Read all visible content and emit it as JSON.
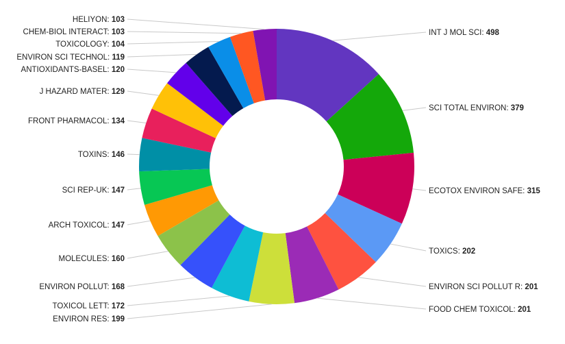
{
  "chart_data": {
    "type": "pie",
    "variant": "donut",
    "title": "",
    "legend": "none",
    "slices": [
      {
        "label": "INT J MOL SCI",
        "value": 498,
        "color": "#6236c0"
      },
      {
        "label": "SCI TOTAL ENVIRON",
        "value": 379,
        "color": "#14a80a"
      },
      {
        "label": "ECOTOX ENVIRON SAFE",
        "value": 315,
        "color": "#cc0058"
      },
      {
        "label": "TOXICS",
        "value": 202,
        "color": "#5b99f5"
      },
      {
        "label": "ENVIRON SCI POLLUT R",
        "value": 201,
        "color": "#fe5240"
      },
      {
        "label": "FOOD CHEM TOXICOL",
        "value": 201,
        "color": "#9b2bb6"
      },
      {
        "label": "ENVIRON RES",
        "value": 199,
        "color": "#cddf3a"
      },
      {
        "label": "TOXICOL LETT",
        "value": 172,
        "color": "#0ebdd4"
      },
      {
        "label": "ENVIRON POLLUT",
        "value": 168,
        "color": "#3651fb"
      },
      {
        "label": "MOLECULES",
        "value": 160,
        "color": "#8cc24a"
      },
      {
        "label": "ARCH TOXICOL",
        "value": 147,
        "color": "#ff9904"
      },
      {
        "label": "SCI REP-UK",
        "value": 147,
        "color": "#07c754"
      },
      {
        "label": "TOXINS",
        "value": 146,
        "color": "#008fa6"
      },
      {
        "label": "FRONT PHARMACOL",
        "value": 134,
        "color": "#e8205c"
      },
      {
        "label": "J HAZARD MATER",
        "value": 129,
        "color": "#ffc107"
      },
      {
        "label": "ANTIOXIDANTS-BASEL",
        "value": 120,
        "color": "#6200ea"
      },
      {
        "label": "ENVIRON SCI TECHNOL",
        "value": 119,
        "color": "#041a4e"
      },
      {
        "label": "TOXICOLOGY",
        "value": 104,
        "color": "#0a8ee8"
      },
      {
        "label": "CHEM-BIOL INTERACT",
        "value": 103,
        "color": "#ff5722"
      },
      {
        "label": "HELIYON",
        "value": 103,
        "color": "#8014b2"
      }
    ]
  }
}
